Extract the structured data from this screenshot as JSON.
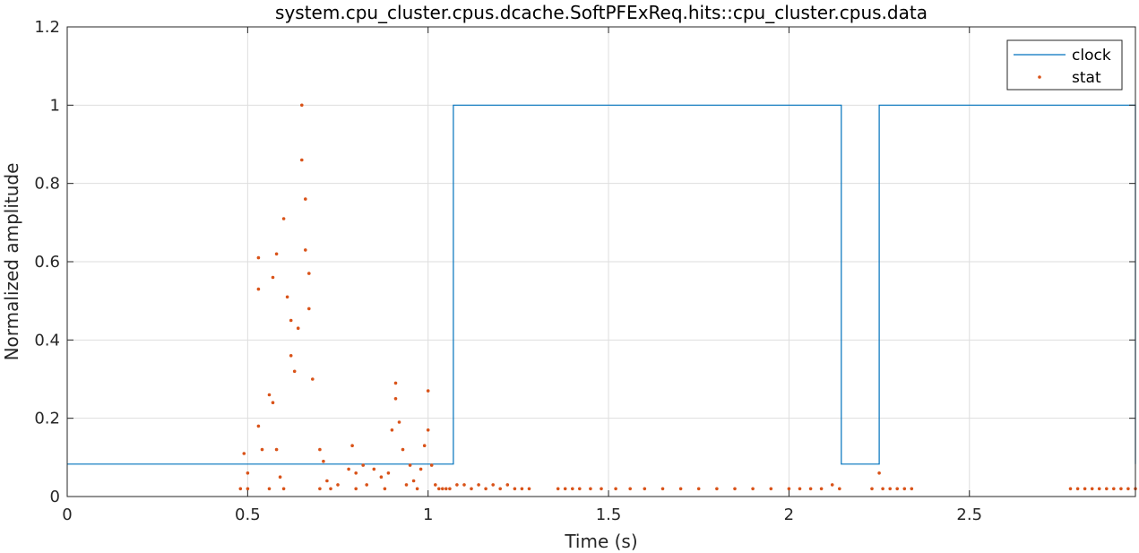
{
  "chart_data": {
    "type": "line",
    "title": "system.cpu_cluster.cpus.dcache.SoftPFExReq.hits::cpu_cluster.cpus.data",
    "xlabel": "Time (s)",
    "ylabel": "Normalized amplitude",
    "xlim": [
      0,
      2.96
    ],
    "ylim": [
      0,
      1.2
    ],
    "x_ticks": [
      0,
      0.5,
      1,
      1.5,
      2,
      2.5
    ],
    "x_tick_labels": [
      "0",
      "0.5",
      "1",
      "1.5",
      "2",
      "2.5"
    ],
    "y_ticks": [
      0,
      0.2,
      0.4,
      0.6,
      0.8,
      1,
      1.2
    ],
    "y_tick_labels": [
      "0",
      "0.2",
      "0.4",
      "0.6",
      "0.8",
      "1",
      "1.2"
    ],
    "grid": true,
    "legend_position": "top-right",
    "series": [
      {
        "name": "clock",
        "style": "step-line",
        "color": "#0072BD",
        "x": [
          0,
          1.07,
          1.07,
          2.145,
          2.145,
          2.25,
          2.25,
          2.96,
          2.96
        ],
        "y": [
          0.083,
          0.083,
          1,
          1,
          0.083,
          0.083,
          1,
          1,
          0.083
        ]
      },
      {
        "name": "stat",
        "style": "dots",
        "color": "#D95319",
        "x": [
          0.48,
          0.49,
          0.5,
          0.5,
          0.53,
          0.53,
          0.53,
          0.54,
          0.56,
          0.56,
          0.57,
          0.57,
          0.58,
          0.58,
          0.59,
          0.6,
          0.6,
          0.61,
          0.62,
          0.62,
          0.63,
          0.64,
          0.65,
          0.65,
          0.66,
          0.66,
          0.67,
          0.67,
          0.68,
          0.7,
          0.7,
          0.71,
          0.72,
          0.73,
          0.75,
          0.78,
          0.79,
          0.8,
          0.8,
          0.82,
          0.83,
          0.85,
          0.87,
          0.88,
          0.89,
          0.9,
          0.91,
          0.91,
          0.92,
          0.93,
          0.94,
          0.95,
          0.96,
          0.97,
          0.98,
          0.99,
          1.0,
          1.0,
          1.01,
          1.02,
          1.03,
          1.04,
          1.05,
          1.06,
          1.08,
          1.1,
          1.12,
          1.14,
          1.16,
          1.18,
          1.2,
          1.22,
          1.24,
          1.26,
          1.28,
          1.36,
          1.38,
          1.4,
          1.42,
          1.45,
          1.48,
          1.52,
          1.56,
          1.6,
          1.65,
          1.7,
          1.75,
          1.8,
          1.85,
          1.9,
          1.95,
          2.0,
          2.03,
          2.06,
          2.09,
          2.12,
          2.14,
          2.23,
          2.25,
          2.26,
          2.28,
          2.3,
          2.32,
          2.34,
          2.78,
          2.8,
          2.82,
          2.84,
          2.86,
          2.88,
          2.9,
          2.92,
          2.94,
          2.96
        ],
        "y": [
          0.02,
          0.11,
          0.06,
          0.02,
          0.61,
          0.53,
          0.18,
          0.12,
          0.26,
          0.02,
          0.24,
          0.56,
          0.62,
          0.12,
          0.05,
          0.02,
          0.71,
          0.51,
          0.45,
          0.36,
          0.32,
          0.43,
          1.0,
          0.86,
          0.76,
          0.63,
          0.57,
          0.48,
          0.3,
          0.12,
          0.02,
          0.09,
          0.04,
          0.02,
          0.03,
          0.07,
          0.13,
          0.06,
          0.02,
          0.08,
          0.03,
          0.07,
          0.05,
          0.02,
          0.06,
          0.17,
          0.29,
          0.25,
          0.19,
          0.12,
          0.03,
          0.08,
          0.04,
          0.02,
          0.07,
          0.13,
          0.27,
          0.17,
          0.08,
          0.03,
          0.02,
          0.02,
          0.02,
          0.02,
          0.03,
          0.03,
          0.02,
          0.03,
          0.02,
          0.03,
          0.02,
          0.03,
          0.02,
          0.02,
          0.02,
          0.02,
          0.02,
          0.02,
          0.02,
          0.02,
          0.02,
          0.02,
          0.02,
          0.02,
          0.02,
          0.02,
          0.02,
          0.02,
          0.02,
          0.02,
          0.02,
          0.02,
          0.02,
          0.02,
          0.02,
          0.03,
          0.02,
          0.02,
          0.06,
          0.02,
          0.02,
          0.02,
          0.02,
          0.02,
          0.02,
          0.02,
          0.02,
          0.02,
          0.02,
          0.02,
          0.02,
          0.02,
          0.02,
          0.02
        ]
      }
    ]
  }
}
